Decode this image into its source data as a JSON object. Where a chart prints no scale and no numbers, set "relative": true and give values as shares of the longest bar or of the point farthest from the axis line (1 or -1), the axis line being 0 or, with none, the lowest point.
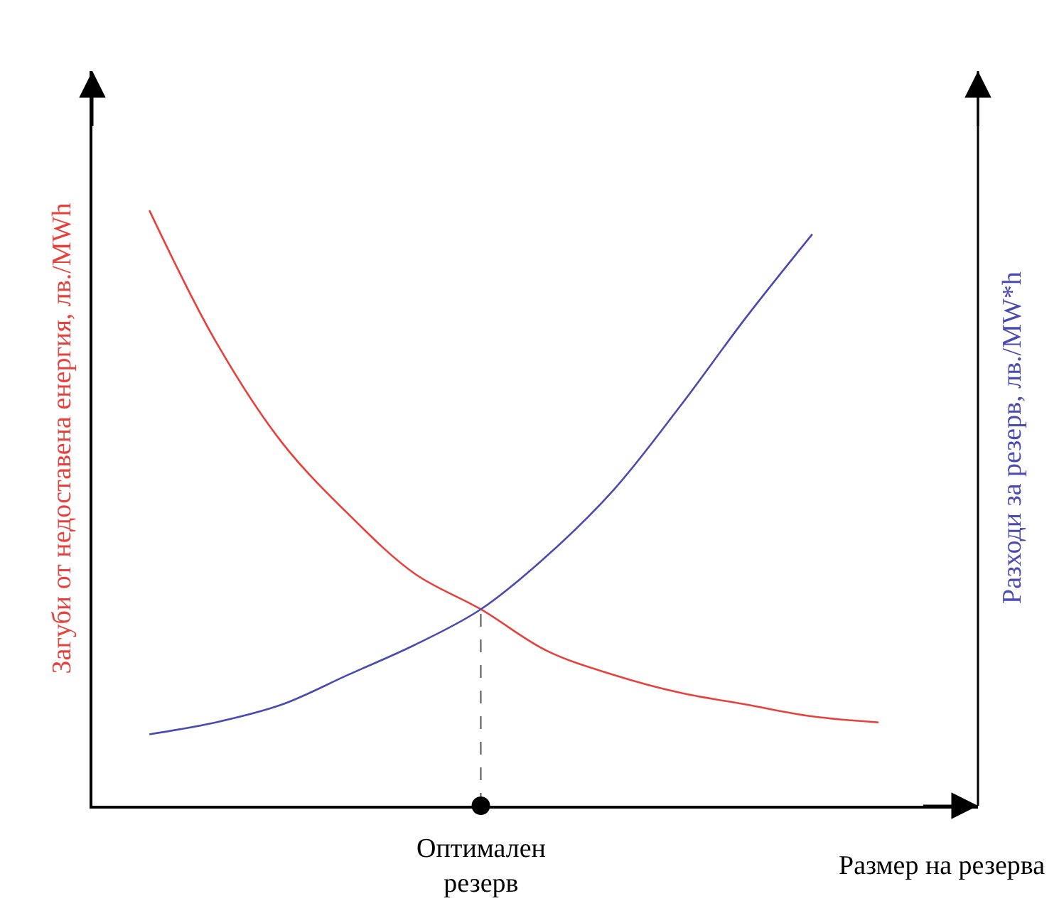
{
  "chart_data": {
    "type": "line",
    "relative": true,
    "ylabel": "Загуби от недоставена енергия, лв./MWh",
    "y2label": "Разходи за резерв, лв./MW*h",
    "xlabel": "Размер на резерва",
    "categories": [
      null,
      null,
      null,
      null,
      null,
      null,
      null,
      null,
      null,
      null,
      null,
      null
    ],
    "series": [
      {
        "color": "#e8413c",
        "values": [
          1,
          0.78,
          0.61,
          0.49,
          0.39,
          0.33,
          0.26,
          0.22,
          0.19,
          0.17,
          0.15,
          0.14
        ]
      },
      {
        "color": "#4a4ab0",
        "values": [
          0.12,
          0.14,
          0.17,
          0.22,
          0.27,
          0.33,
          0.42,
          0.53,
          0.67,
          0.82,
          0.96,
          null
        ]
      }
    ],
    "annotations": [
      "Оптимален резерв"
    ],
    "marker": "none",
    "line_style": "solid"
  }
}
